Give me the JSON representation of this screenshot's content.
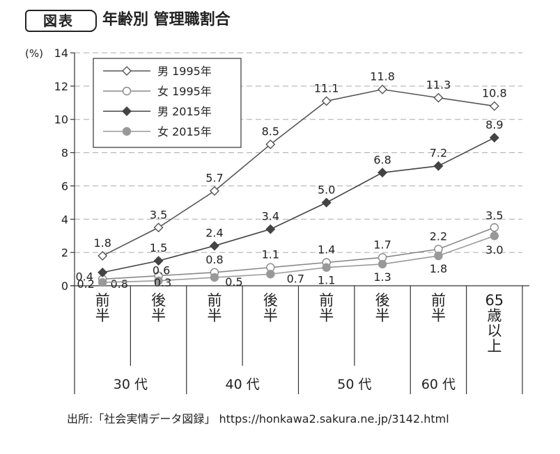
{
  "header": {
    "badge": "図表",
    "title": "年齢別 管理職割合"
  },
  "source": "出所:「社会実情データ図録」 https://honkawa2.sakura.ne.jp/3142.html",
  "colors": {
    "male_1995": "#555555",
    "female_1995": "#888888",
    "male_2015": "#444444",
    "female_2015": "#999999",
    "grid": "#aaaaaa",
    "axis": "#333333"
  },
  "chart_data": {
    "type": "line",
    "unit_label": "(%)",
    "ylim": [
      0,
      14
    ],
    "yticks": [
      0,
      2,
      4,
      6,
      8,
      10,
      12,
      14
    ],
    "ytick_labels": [
      "0",
      "2",
      "4",
      "6",
      "8",
      "10",
      "12",
      "14"
    ],
    "grid": true,
    "legend_position": "top-left",
    "categories": [
      [
        "前",
        "半"
      ],
      [
        "後",
        "半"
      ],
      [
        "前",
        "半"
      ],
      [
        "後",
        "半"
      ],
      [
        "前",
        "半"
      ],
      [
        "後",
        "半"
      ],
      [
        "前",
        "半"
      ],
      [
        "65",
        "歳",
        "以",
        "上"
      ]
    ],
    "groups": [
      "30 代",
      "40 代",
      "50 代",
      "60 代"
    ],
    "series": [
      {
        "name": "男 1995年",
        "marker": "diamond-open",
        "values": [
          1.8,
          3.5,
          5.7,
          8.5,
          11.1,
          11.8,
          11.3,
          10.8
        ],
        "labels": [
          "1.8",
          "3.5",
          "5.7",
          "8.5",
          "11.1",
          "11.8",
          "11.3",
          "10.8"
        ]
      },
      {
        "name": "女 1995年",
        "marker": "circle-open",
        "values": [
          0.4,
          0.6,
          0.8,
          1.1,
          1.4,
          1.7,
          2.2,
          3.5
        ],
        "labels": [
          "0.4",
          "0.6",
          "0.8",
          "1.1",
          "1.4",
          "1.7",
          "2.2",
          "3.5"
        ]
      },
      {
        "name": "男 2015年",
        "marker": "diamond-filled",
        "values": [
          0.8,
          1.5,
          2.4,
          3.4,
          5.0,
          6.8,
          7.2,
          8.9
        ],
        "labels": [
          "0.8",
          "1.5",
          "2.4",
          "3.4",
          "5.0",
          "6.8",
          "7.2",
          "8.9"
        ]
      },
      {
        "name": "女 2015年",
        "marker": "circle-filled",
        "values": [
          0.2,
          0.3,
          0.5,
          0.7,
          1.1,
          1.3,
          1.8,
          3.0
        ],
        "labels": [
          "0.2",
          "0.3",
          "0.5",
          "0.7",
          "1.1",
          "1.3",
          "1.8",
          "3.0"
        ]
      }
    ]
  }
}
